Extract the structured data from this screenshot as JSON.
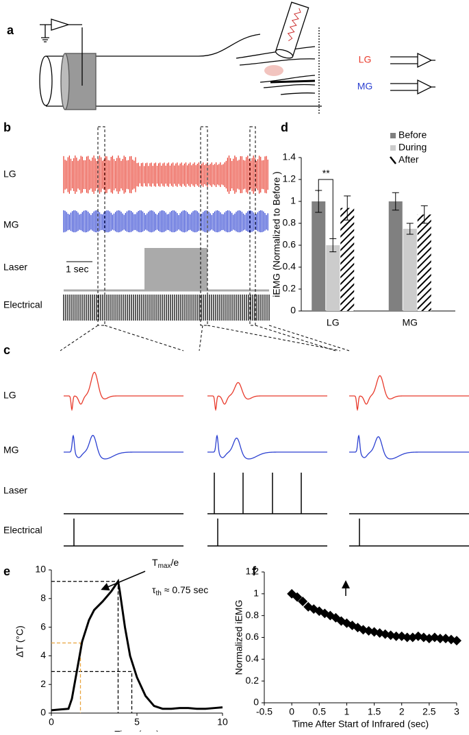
{
  "panels": {
    "a": {
      "label": "a",
      "channels": [
        "LG",
        "MG"
      ]
    },
    "b": {
      "label": "b",
      "rows": [
        "LG",
        "MG",
        "Laser",
        "Electrical"
      ],
      "scale_bar": "1 sec"
    },
    "c": {
      "label": "c",
      "rows": [
        "LG",
        "MG",
        "Laser",
        "Electrical"
      ]
    }
  },
  "chart_data": [
    {
      "type": "bar",
      "panel": "d",
      "y_label": "iEMG (Normalized to Before )",
      "categories": [
        "LG",
        "MG"
      ],
      "series": [
        {
          "name": "Before",
          "color": "#808080",
          "values": [
            1,
            1
          ],
          "errors": [
            0.1,
            0.08
          ]
        },
        {
          "name": "During",
          "color": "#cccccc",
          "values": [
            0.6,
            0.75
          ],
          "errors": [
            0.06,
            0.05
          ]
        },
        {
          "name": "After",
          "color": "#000000",
          "pattern": "hatch",
          "values": [
            0.94,
            0.88
          ],
          "errors": [
            0.11,
            0.08
          ]
        }
      ],
      "ylim": [
        0,
        1.4
      ],
      "yticks": [
        0,
        0.2,
        0.4,
        0.6,
        0.8,
        1,
        1.2,
        1.4
      ],
      "annotation": "**",
      "legend": "top-right"
    },
    {
      "type": "line",
      "panel": "e",
      "x_label": "Time (sec)",
      "y_label": "ΔT (°C)",
      "color": "#000000",
      "x": [
        0,
        0.5,
        1,
        1.2,
        1.5,
        1.8,
        2.2,
        2.5,
        3,
        3.5,
        3.9,
        4,
        4.3,
        4.6,
        5,
        5.5,
        6,
        6.5,
        7,
        7.5,
        8,
        8.5,
        9,
        9.5,
        10
      ],
      "values": [
        0.2,
        0.25,
        0.3,
        1,
        3,
        5,
        6.5,
        7.2,
        7.8,
        8.5,
        9.2,
        8.5,
        6,
        4,
        2.5,
        1.2,
        0.5,
        0.3,
        0.3,
        0.35,
        0.35,
        0.3,
        0.3,
        0.35,
        0.4
      ],
      "xlim": [
        0,
        10
      ],
      "xticks": [
        0,
        5,
        10
      ],
      "ylim": [
        0,
        10
      ],
      "yticks": [
        0,
        2,
        4,
        6,
        8,
        10
      ],
      "guides": [
        {
          "x": 3.9,
          "y": 9.2,
          "color": "#000000"
        },
        {
          "x": 4.7,
          "y": 2.9,
          "color": "#000000"
        },
        {
          "x": 1.7,
          "y": 4.9,
          "color": "#e8a33d"
        }
      ],
      "annotations": [
        [
          "T",
          "max",
          "/e"
        ],
        [
          "τ",
          "th",
          " ≈ 0.75 sec"
        ]
      ]
    },
    {
      "type": "scatter",
      "panel": "f",
      "x_label": "Time After Start of Infrared (sec)",
      "y_label": "Normalized iEMG",
      "color": "#000000",
      "x": [
        0,
        0.1,
        0.2,
        0.3,
        0.4,
        0.5,
        0.6,
        0.7,
        0.8,
        0.9,
        1,
        1.1,
        1.2,
        1.3,
        1.4,
        1.5,
        1.6,
        1.7,
        1.8,
        1.9,
        2,
        2.1,
        2.2,
        2.3,
        2.4,
        2.5,
        2.6,
        2.7,
        2.8,
        2.9,
        3
      ],
      "values": [
        1,
        0.97,
        0.93,
        0.88,
        0.86,
        0.84,
        0.82,
        0.8,
        0.78,
        0.75,
        0.73,
        0.71,
        0.69,
        0.67,
        0.66,
        0.65,
        0.64,
        0.63,
        0.62,
        0.61,
        0.61,
        0.6,
        0.6,
        0.61,
        0.6,
        0.59,
        0.6,
        0.59,
        0.59,
        0.58,
        0.57
      ],
      "xlim": [
        -0.5,
        3
      ],
      "xticks": [
        -0.5,
        0,
        0.5,
        1,
        1.5,
        2,
        2.5,
        3
      ],
      "ylim": [
        0,
        1.2
      ],
      "yticks": [
        0,
        0.2,
        0.4,
        0.6,
        0.8,
        1,
        1.2
      ]
    }
  ]
}
